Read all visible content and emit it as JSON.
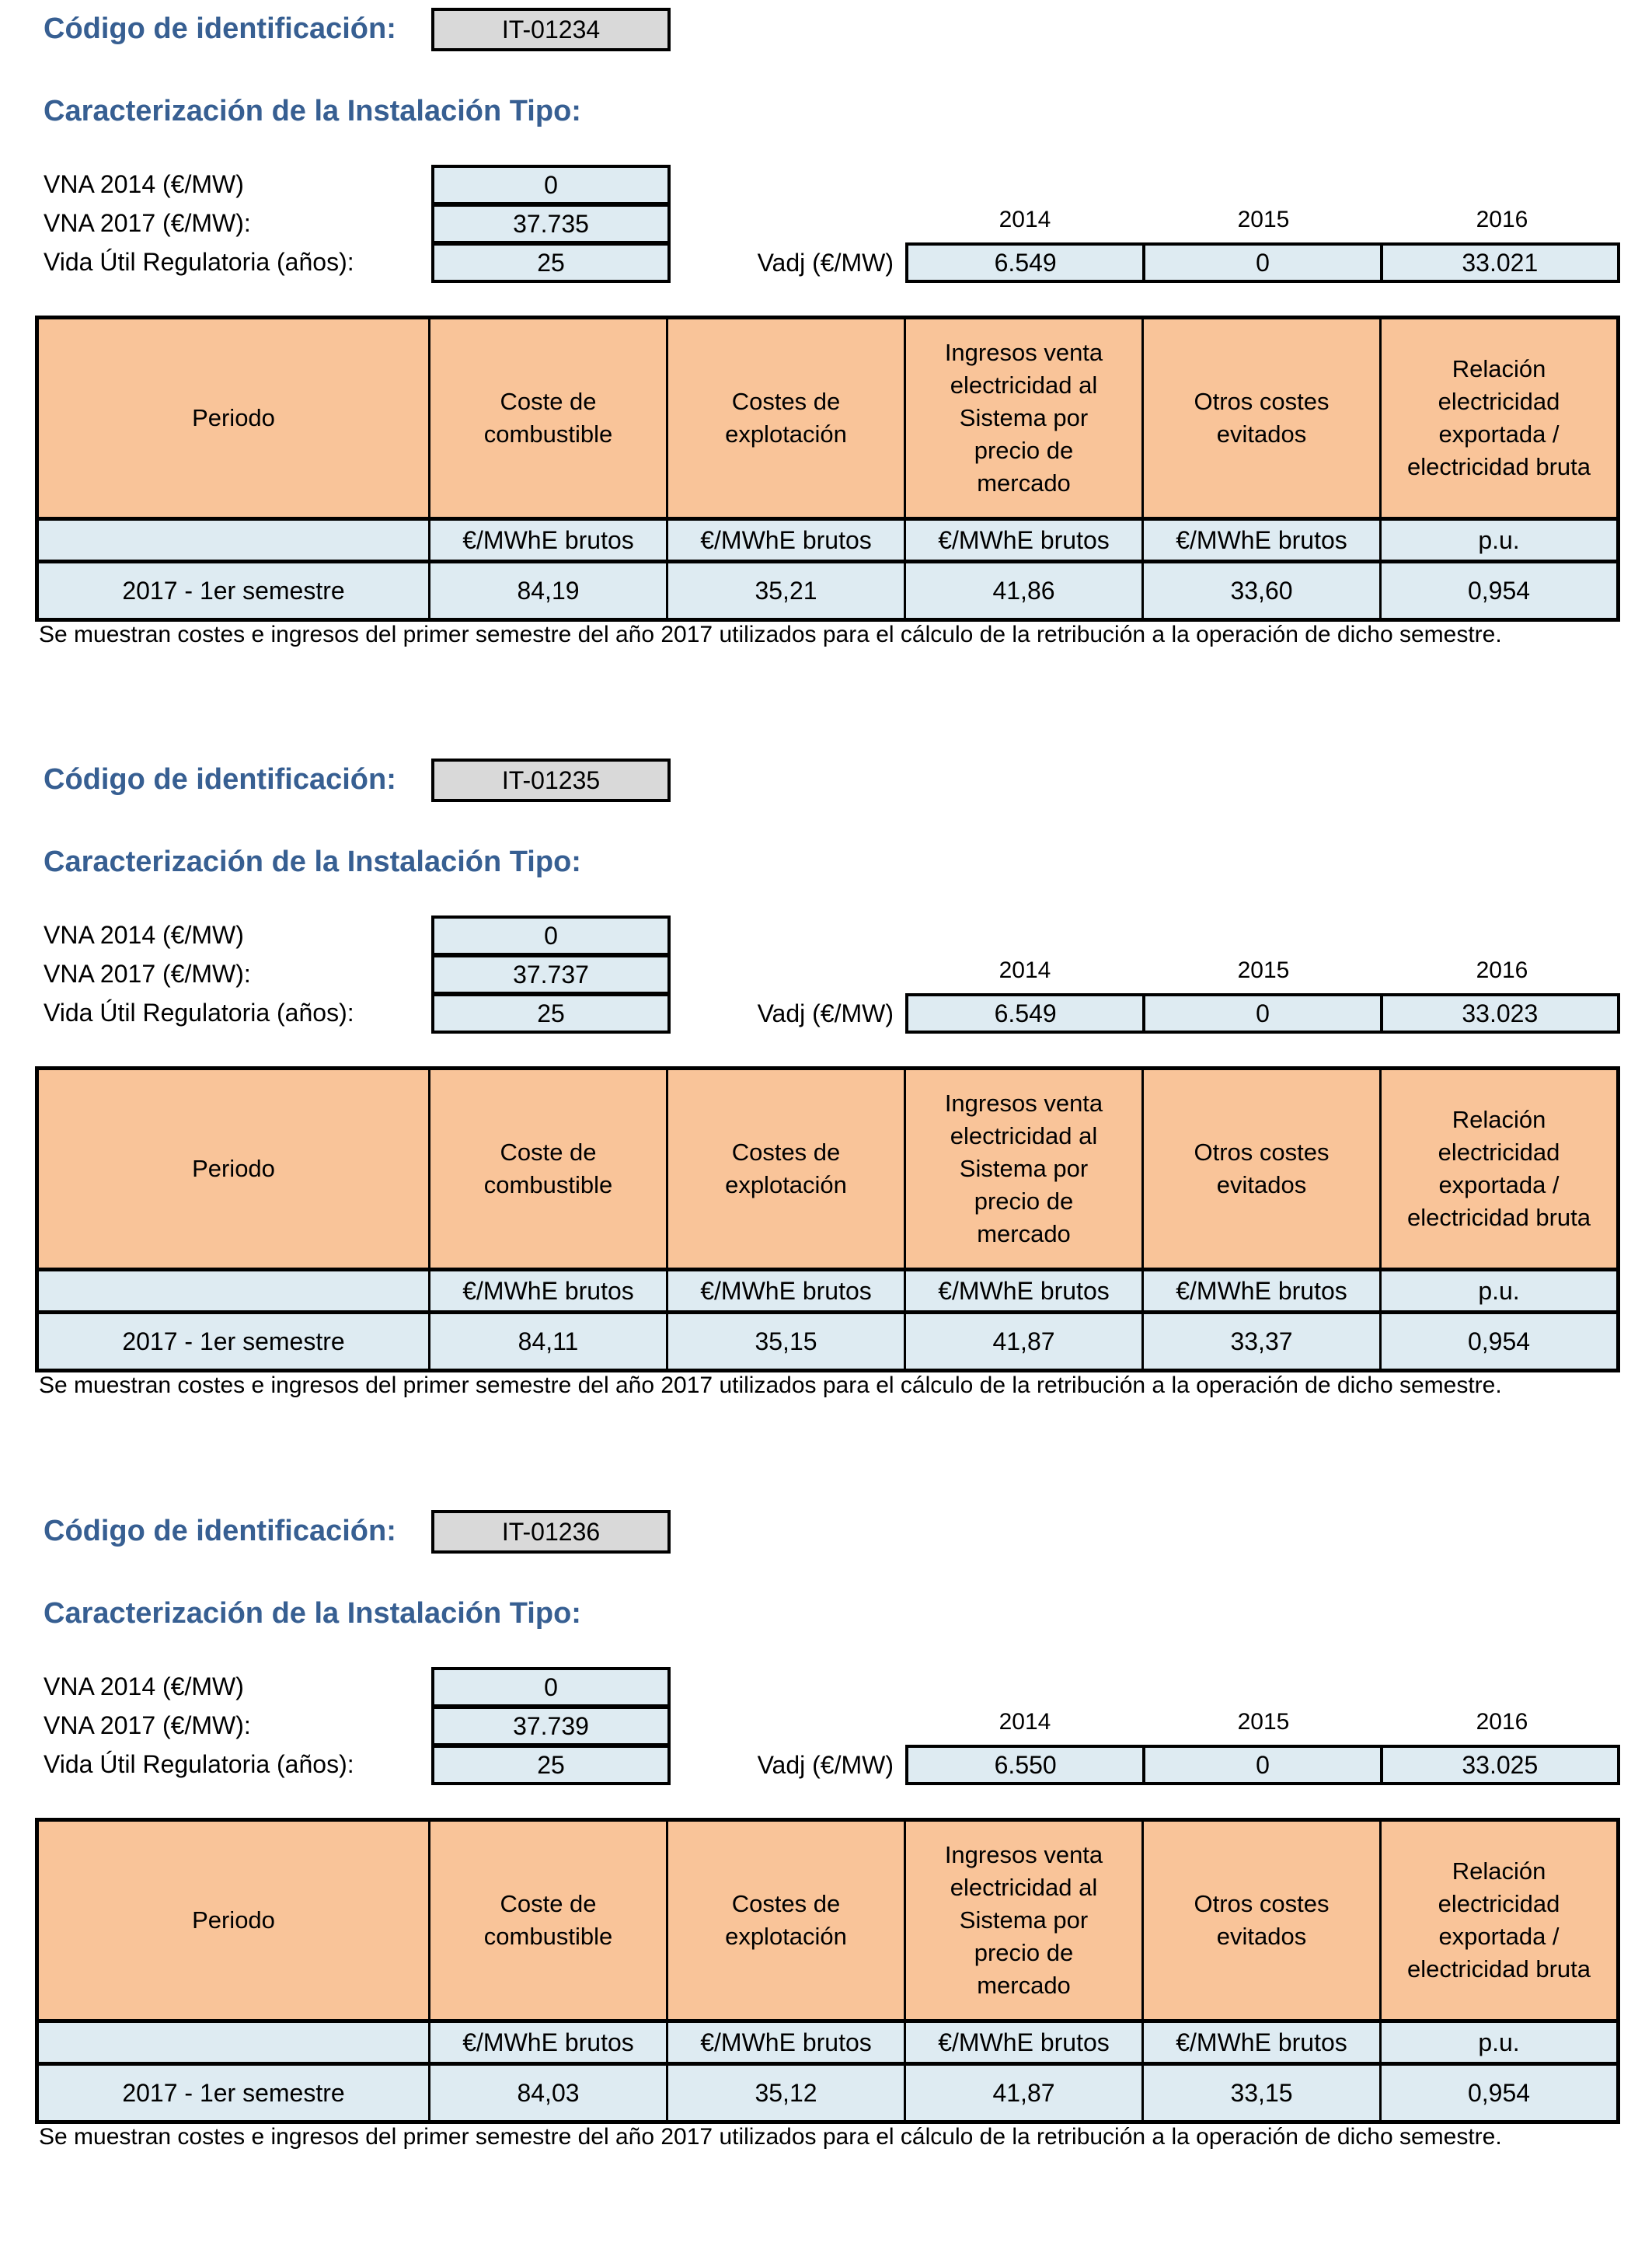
{
  "shared": {
    "codigo_label": "Código de identificación:",
    "caracterizacion_label": "Caracterización de la Instalación Tipo:",
    "vna2014_label": "VNA 2014 (€/MW)",
    "vna2017_label": "VNA 2017 (€/MW):",
    "vida_label": "Vida Útil Regulatoria (años):",
    "vadj_label": "Vadj (€/MW)",
    "years": [
      "2014",
      "2015",
      "2016"
    ],
    "table_headers": [
      "Periodo",
      "Coste de\ncombustible",
      "Costes de\nexplotación",
      "Ingresos venta\nelectricidad al\nSistema por\nprecio de\nmercado",
      "Otros costes\nevitados",
      "Relación\nelectricidad\nexportada /\nelectricidad bruta"
    ],
    "table_units": [
      "€/MWhE brutos",
      "€/MWhE brutos",
      "€/MWhE brutos",
      "€/MWhE brutos",
      "p.u."
    ],
    "note": "Se muestran costes e ingresos del primer semestre del año 2017 utilizados para el cálculo de la retribución a la operación de dicho semestre."
  },
  "sections": [
    {
      "code": "IT-01234",
      "vna_2014": "0",
      "vna_2017": "37.735",
      "vida_util": "25",
      "vadj": [
        "6.549",
        "0",
        "33.021"
      ],
      "periodo": "2017 - 1er semestre",
      "values": [
        "84,19",
        "35,21",
        "41,86",
        "33,60",
        "0,954"
      ]
    },
    {
      "code": "IT-01235",
      "vna_2014": "0",
      "vna_2017": "37.737",
      "vida_util": "25",
      "vadj": [
        "6.549",
        "0",
        "33.023"
      ],
      "periodo": "2017 - 1er semestre",
      "values": [
        "84,11",
        "35,15",
        "41,87",
        "33,37",
        "0,954"
      ]
    },
    {
      "code": "IT-01236",
      "vna_2014": "0",
      "vna_2017": "37.739",
      "vida_util": "25",
      "vadj": [
        "6.550",
        "0",
        "33.025"
      ],
      "periodo": "2017 - 1er semestre",
      "values": [
        "84,03",
        "35,12",
        "41,87",
        "33,15",
        "0,954"
      ]
    }
  ],
  "colors": {
    "heading_blue": "#375F92",
    "header_orange": "#F9C499",
    "cell_light_blue": "#DEEBF2",
    "code_box_gray": "#D9D9D9",
    "border_black": "#000000"
  }
}
